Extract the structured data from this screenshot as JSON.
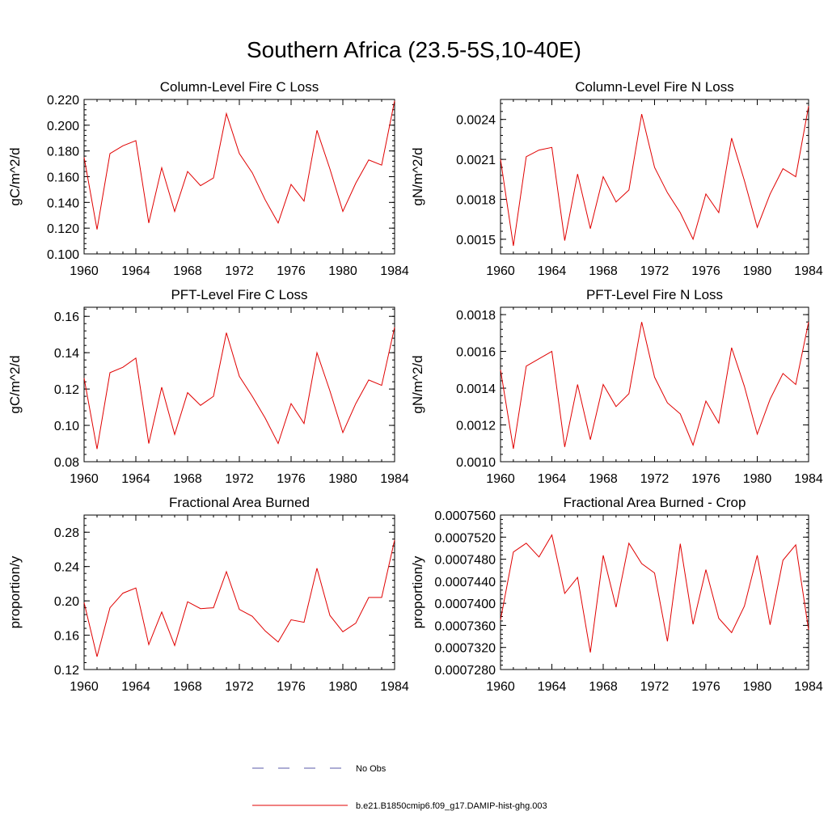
{
  "title": "Southern Africa (23.5-5S,10-40E)",
  "legend": {
    "entries": [
      {
        "label": "No Obs",
        "color": "#5a5aa8",
        "style": "dashed"
      },
      {
        "label": "b.e21.B1850cmip6.f09_g17.DAMIP-hist-ghg.003",
        "color": "#e00000",
        "style": "solid"
      }
    ]
  },
  "chart_data": [
    {
      "type": "line",
      "title": "Column-Level Fire C Loss",
      "ylabel": "gC/m^2/d",
      "xlim": [
        1960,
        1984
      ],
      "ylim": [
        0.1,
        0.22
      ],
      "xticks": [
        "1960",
        "1964",
        "1968",
        "1972",
        "1976",
        "1980",
        "1984"
      ],
      "xtick_values": [
        1960,
        1964,
        1968,
        1972,
        1976,
        1980,
        1984
      ],
      "yticks": [
        "0.100",
        "0.120",
        "0.140",
        "0.160",
        "0.180",
        "0.200",
        "0.220"
      ],
      "ytick_values": [
        0.1,
        0.12,
        0.14,
        0.16,
        0.18,
        0.2,
        0.22
      ],
      "x": [
        1960,
        1961,
        1962,
        1963,
        1964,
        1965,
        1966,
        1967,
        1968,
        1969,
        1970,
        1971,
        1972,
        1973,
        1974,
        1975,
        1976,
        1977,
        1978,
        1979,
        1980,
        1981,
        1982,
        1983,
        1984
      ],
      "series": [
        {
          "name": "b.e21.B1850cmip6.f09_g17.DAMIP-hist-ghg.003",
          "color": "#e00000",
          "values": [
            0.175,
            0.119,
            0.178,
            0.184,
            0.188,
            0.124,
            0.167,
            0.133,
            0.164,
            0.153,
            0.159,
            0.209,
            0.178,
            0.163,
            0.142,
            0.124,
            0.154,
            0.141,
            0.196,
            0.166,
            0.133,
            0.155,
            0.173,
            0.169,
            0.219
          ]
        }
      ]
    },
    {
      "type": "line",
      "title": "Column-Level Fire N Loss",
      "ylabel": "gN/m^2/d",
      "xlim": [
        1960,
        1984
      ],
      "ylim": [
        0.00139,
        0.00255
      ],
      "xticks": [
        "1960",
        "1964",
        "1968",
        "1972",
        "1976",
        "1980",
        "1984"
      ],
      "xtick_values": [
        1960,
        1964,
        1968,
        1972,
        1976,
        1980,
        1984
      ],
      "yticks": [
        "0.0015",
        "0.0018",
        "0.0021",
        "0.0024"
      ],
      "ytick_values": [
        0.0015,
        0.0018,
        0.0021,
        0.0024
      ],
      "x": [
        1960,
        1961,
        1962,
        1963,
        1964,
        1965,
        1966,
        1967,
        1968,
        1969,
        1970,
        1971,
        1972,
        1973,
        1974,
        1975,
        1976,
        1977,
        1978,
        1979,
        1980,
        1981,
        1982,
        1983,
        1984
      ],
      "series": [
        {
          "name": "b.e21.B1850cmip6.f09_g17.DAMIP-hist-ghg.003",
          "color": "#e00000",
          "values": [
            0.0021,
            0.00145,
            0.00212,
            0.00217,
            0.00219,
            0.00149,
            0.00199,
            0.00158,
            0.00197,
            0.00178,
            0.00187,
            0.00244,
            0.00204,
            0.00185,
            0.0017,
            0.0015,
            0.00184,
            0.0017,
            0.00226,
            0.00194,
            0.00159,
            0.00184,
            0.00203,
            0.00197,
            0.0025
          ]
        }
      ]
    },
    {
      "type": "line",
      "title": "PFT-Level Fire C Loss",
      "ylabel": "gC/m^2/d",
      "xlim": [
        1960,
        1984
      ],
      "ylim": [
        0.08,
        0.165
      ],
      "xticks": [
        "1960",
        "1964",
        "1968",
        "1972",
        "1976",
        "1980",
        "1984"
      ],
      "xtick_values": [
        1960,
        1964,
        1968,
        1972,
        1976,
        1980,
        1984
      ],
      "yticks": [
        "0.08",
        "0.10",
        "0.12",
        "0.14",
        "0.16"
      ],
      "ytick_values": [
        0.08,
        0.1,
        0.12,
        0.14,
        0.16
      ],
      "x": [
        1960,
        1961,
        1962,
        1963,
        1964,
        1965,
        1966,
        1967,
        1968,
        1969,
        1970,
        1971,
        1972,
        1973,
        1974,
        1975,
        1976,
        1977,
        1978,
        1979,
        1980,
        1981,
        1982,
        1983,
        1984
      ],
      "series": [
        {
          "name": "b.e21.B1850cmip6.f09_g17.DAMIP-hist-ghg.003",
          "color": "#e00000",
          "values": [
            0.126,
            0.087,
            0.129,
            0.132,
            0.137,
            0.09,
            0.121,
            0.095,
            0.118,
            0.111,
            0.116,
            0.151,
            0.127,
            0.116,
            0.104,
            0.09,
            0.112,
            0.101,
            0.14,
            0.119,
            0.096,
            0.112,
            0.125,
            0.122,
            0.154
          ]
        }
      ]
    },
    {
      "type": "line",
      "title": "PFT-Level Fire N Loss",
      "ylabel": "gN/m^2/d",
      "xlim": [
        1960,
        1984
      ],
      "ylim": [
        0.001,
        0.00184
      ],
      "xticks": [
        "1960",
        "1964",
        "1968",
        "1972",
        "1976",
        "1980",
        "1984"
      ],
      "xtick_values": [
        1960,
        1964,
        1968,
        1972,
        1976,
        1980,
        1984
      ],
      "yticks": [
        "0.0010",
        "0.0012",
        "0.0014",
        "0.0016",
        "0.0018"
      ],
      "ytick_values": [
        0.001,
        0.0012,
        0.0014,
        0.0016,
        0.0018
      ],
      "x": [
        1960,
        1961,
        1962,
        1963,
        1964,
        1965,
        1966,
        1967,
        1968,
        1969,
        1970,
        1971,
        1972,
        1973,
        1974,
        1975,
        1976,
        1977,
        1978,
        1979,
        1980,
        1981,
        1982,
        1983,
        1984
      ],
      "series": [
        {
          "name": "b.e21.B1850cmip6.f09_g17.DAMIP-hist-ghg.003",
          "color": "#e00000",
          "values": [
            0.0015,
            0.00107,
            0.00152,
            0.00156,
            0.0016,
            0.00108,
            0.00142,
            0.00112,
            0.00142,
            0.0013,
            0.00137,
            0.00176,
            0.00146,
            0.00132,
            0.00126,
            0.00109,
            0.00133,
            0.00121,
            0.00162,
            0.00141,
            0.00115,
            0.00134,
            0.00148,
            0.00142,
            0.00176
          ]
        }
      ]
    },
    {
      "type": "line",
      "title": "Fractional Area Burned",
      "ylabel": "proportion/y",
      "xlim": [
        1960,
        1984
      ],
      "ylim": [
        0.12,
        0.3
      ],
      "xticks": [
        "1960",
        "1964",
        "1968",
        "1972",
        "1976",
        "1980",
        "1984"
      ],
      "xtick_values": [
        1960,
        1964,
        1968,
        1972,
        1976,
        1980,
        1984
      ],
      "yticks": [
        "0.12",
        "0.16",
        "0.20",
        "0.24",
        "0.28"
      ],
      "ytick_values": [
        0.12,
        0.16,
        0.2,
        0.24,
        0.28
      ],
      "x": [
        1960,
        1961,
        1962,
        1963,
        1964,
        1965,
        1966,
        1967,
        1968,
        1969,
        1970,
        1971,
        1972,
        1973,
        1974,
        1975,
        1976,
        1977,
        1978,
        1979,
        1980,
        1981,
        1982,
        1983,
        1984
      ],
      "series": [
        {
          "name": "b.e21.B1850cmip6.f09_g17.DAMIP-hist-ghg.003",
          "color": "#e00000",
          "values": [
            0.198,
            0.135,
            0.192,
            0.209,
            0.215,
            0.149,
            0.187,
            0.148,
            0.199,
            0.191,
            0.192,
            0.234,
            0.19,
            0.182,
            0.165,
            0.152,
            0.178,
            0.175,
            0.238,
            0.183,
            0.164,
            0.174,
            0.204,
            0.204,
            0.271
          ]
        }
      ]
    },
    {
      "type": "line",
      "title": "Fractional Area Burned - Crop",
      "ylabel": "proportion/y",
      "xlim": [
        1960,
        1984
      ],
      "ylim": [
        0.000728,
        0.000756
      ],
      "xticks": [
        "1960",
        "1964",
        "1968",
        "1972",
        "1976",
        "1980",
        "1984"
      ],
      "xtick_values": [
        1960,
        1964,
        1968,
        1972,
        1976,
        1980,
        1984
      ],
      "yticks": [
        "0.0007280",
        "0.0007320",
        "0.0007360",
        "0.0007400",
        "0.0007440",
        "0.0007480",
        "0.0007520",
        "0.0007560"
      ],
      "ytick_values": [
        0.000728,
        0.000732,
        0.000736,
        0.00074,
        0.000744,
        0.000748,
        0.000752,
        0.000756
      ],
      "x": [
        1960,
        1961,
        1962,
        1963,
        1964,
        1965,
        1966,
        1967,
        1968,
        1969,
        1970,
        1971,
        1972,
        1973,
        1974,
        1975,
        1976,
        1977,
        1978,
        1979,
        1980,
        1981,
        1982,
        1983,
        1984
      ],
      "series": [
        {
          "name": "b.e21.B1850cmip6.f09_g17.DAMIP-hist-ghg.003",
          "color": "#e00000",
          "values": [
            0.000737,
            0.0007493,
            0.0007509,
            0.0007484,
            0.0007524,
            0.0007418,
            0.0007447,
            0.0007311,
            0.0007487,
            0.0007393,
            0.0007509,
            0.0007472,
            0.0007455,
            0.0007331,
            0.0007508,
            0.0007362,
            0.0007461,
            0.0007373,
            0.0007347,
            0.0007395,
            0.0007487,
            0.0007361,
            0.0007478,
            0.0007506,
            0.0007352
          ]
        }
      ]
    }
  ]
}
